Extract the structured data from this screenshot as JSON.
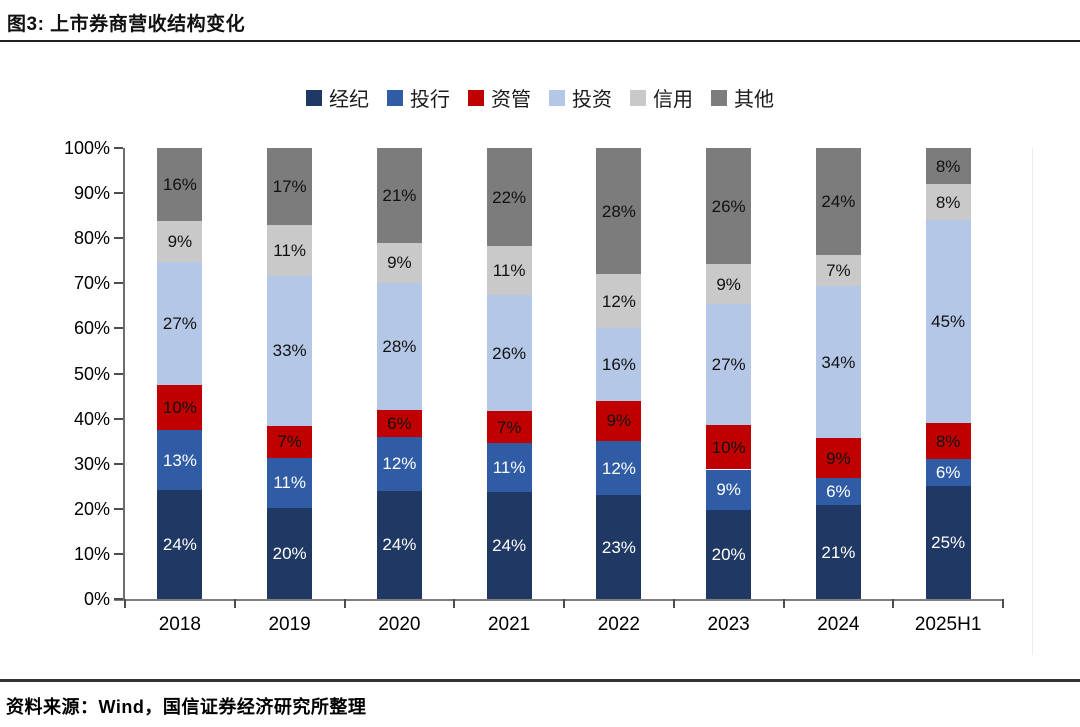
{
  "header": {
    "title": "图3: 上市券商营收结构变化"
  },
  "source": {
    "text": "资料来源：Wind，国信证券经济研究所整理"
  },
  "chart_data": {
    "type": "bar",
    "variant": "stacked-100-percent",
    "title": "上市券商营收结构变化",
    "legend_position": "top",
    "grid": false,
    "value_suffix": "%",
    "categories": [
      "2018",
      "2019",
      "2020",
      "2021",
      "2022",
      "2023",
      "2024",
      "2025H1"
    ],
    "series": [
      {
        "key": "jingji",
        "name": "经纪",
        "color": "#1F3864",
        "label_color": "#FFFFFF",
        "values": [
          24,
          20,
          24,
          24,
          23,
          20,
          21,
          25
        ]
      },
      {
        "key": "touhang",
        "name": "投行",
        "color": "#2F5CA5",
        "label_color": "#FFFFFF",
        "values": [
          13,
          11,
          12,
          11,
          12,
          9,
          6,
          6
        ]
      },
      {
        "key": "ziguan",
        "name": "资管",
        "color": "#C00000",
        "label_color": "#111111",
        "values": [
          10,
          7,
          6,
          7,
          9,
          10,
          9,
          8
        ]
      },
      {
        "key": "touzi",
        "name": "投资",
        "color": "#B4C7E7",
        "label_color": "#111111",
        "values": [
          27,
          33,
          28,
          26,
          16,
          27,
          34,
          45
        ]
      },
      {
        "key": "xinyong",
        "name": "信用",
        "color": "#C9C9C9",
        "label_color": "#111111",
        "values": [
          9,
          11,
          9,
          11,
          12,
          9,
          7,
          8
        ]
      },
      {
        "key": "qita",
        "name": "其他",
        "color": "#7C7C7C",
        "label_color": "#111111",
        "values": [
          16,
          17,
          21,
          22,
          28,
          26,
          24,
          8
        ]
      }
    ],
    "y_axis": {
      "min": 0,
      "max": 100,
      "ticks": [
        "0%",
        "10%",
        "20%",
        "30%",
        "40%",
        "50%",
        "60%",
        "70%",
        "80%",
        "90%",
        "100%"
      ]
    }
  }
}
